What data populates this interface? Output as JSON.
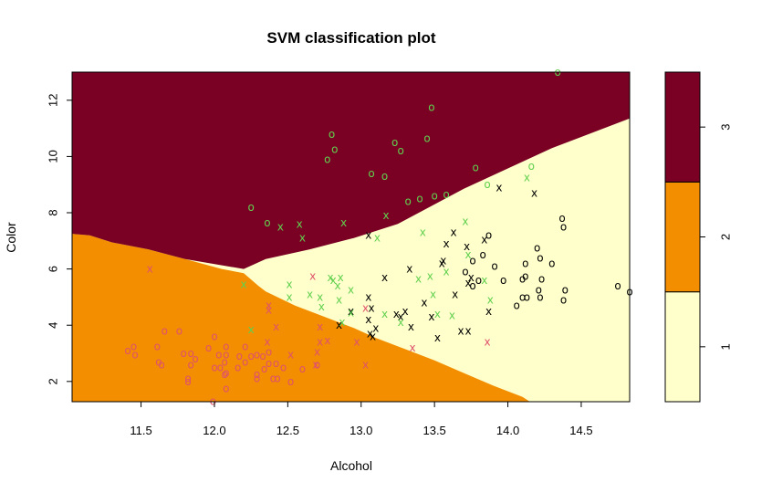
{
  "chart_data": {
    "type": "scatter",
    "title": "SVM classification plot",
    "xlabel": "Alcohol",
    "ylabel": "Color",
    "xlim": [
      11.03,
      14.83
    ],
    "ylim": [
      1.28,
      13.0
    ],
    "xticks": [
      "11.5",
      "12.0",
      "12.5",
      "13.0",
      "13.5",
      "14.0",
      "14.5"
    ],
    "xtick_values": [
      11.5,
      12.0,
      12.5,
      13.0,
      13.5,
      14.0,
      14.5
    ],
    "yticks": [
      "2",
      "4",
      "6",
      "8",
      "10",
      "12"
    ],
    "ytick_values": [
      2,
      4,
      6,
      8,
      10,
      12
    ],
    "legend": {
      "position": "right",
      "type": "color-key",
      "classes": [
        "1",
        "2",
        "3"
      ],
      "colors": [
        "#FFFFCC",
        "#F28E00",
        "#7A0024"
      ]
    },
    "region_colors": {
      "1": "#FFFFCC",
      "2": "#F28E00",
      "3": "#7A0024"
    },
    "point_markers": {
      "support_vector": "x",
      "other": "o"
    },
    "boundary_2": [
      [
        11.03,
        7.25
      ],
      [
        11.15,
        7.2
      ],
      [
        11.3,
        6.95
      ],
      [
        11.55,
        6.7
      ],
      [
        11.8,
        6.35
      ],
      [
        12.05,
        6.0
      ],
      [
        12.2,
        5.85
      ],
      [
        12.3,
        5.4
      ],
      [
        12.35,
        5.2
      ],
      [
        12.55,
        4.7
      ],
      [
        12.75,
        4.3
      ],
      [
        12.95,
        3.9
      ],
      [
        13.1,
        3.55
      ],
      [
        13.3,
        3.15
      ],
      [
        13.5,
        2.75
      ],
      [
        13.7,
        2.3
      ],
      [
        13.9,
        1.85
      ],
      [
        14.1,
        1.45
      ],
      [
        14.15,
        1.28
      ],
      [
        11.03,
        1.28
      ]
    ],
    "boundary_3": [
      [
        11.03,
        13.0
      ],
      [
        14.83,
        13.0
      ],
      [
        14.83,
        11.35
      ],
      [
        14.3,
        10.3
      ],
      [
        13.7,
        8.85
      ],
      [
        13.25,
        7.6
      ],
      [
        12.95,
        7.1
      ],
      [
        12.65,
        6.7
      ],
      [
        12.35,
        6.35
      ],
      [
        12.2,
        6.0
      ],
      [
        11.8,
        6.35
      ],
      [
        11.55,
        6.7
      ],
      [
        11.3,
        6.95
      ],
      [
        11.15,
        7.2
      ],
      [
        11.03,
        7.25
      ]
    ],
    "series": [
      {
        "name": "1",
        "color": "#000000",
        "points": [
          {
            "x": 13.05,
            "y": 7.2,
            "sv": true
          },
          {
            "x": 13.58,
            "y": 6.9,
            "sv": true
          },
          {
            "x": 13.63,
            "y": 7.3,
            "sv": true
          },
          {
            "x": 13.72,
            "y": 6.8,
            "sv": true
          },
          {
            "x": 13.84,
            "y": 7.05,
            "sv": true
          },
          {
            "x": 13.94,
            "y": 8.9,
            "sv": true
          },
          {
            "x": 14.18,
            "y": 8.7,
            "sv": true
          },
          {
            "x": 13.33,
            "y": 6.0,
            "sv": true
          },
          {
            "x": 13.55,
            "y": 6.2,
            "sv": true
          },
          {
            "x": 13.56,
            "y": 6.3,
            "sv": true
          },
          {
            "x": 13.75,
            "y": 5.7,
            "sv": true
          },
          {
            "x": 13.73,
            "y": 5.5,
            "sv": true
          },
          {
            "x": 13.64,
            "y": 5.1,
            "sv": true
          },
          {
            "x": 13.87,
            "y": 4.5,
            "sv": true
          },
          {
            "x": 13.16,
            "y": 5.7,
            "sv": true
          },
          {
            "x": 13.05,
            "y": 5.0,
            "sv": true
          },
          {
            "x": 13.07,
            "y": 4.6,
            "sv": true
          },
          {
            "x": 13.24,
            "y": 4.4,
            "sv": true
          },
          {
            "x": 13.27,
            "y": 4.3,
            "sv": true
          },
          {
            "x": 13.3,
            "y": 4.5,
            "sv": true
          },
          {
            "x": 13.43,
            "y": 4.8,
            "sv": true
          },
          {
            "x": 12.93,
            "y": 4.5,
            "sv": true
          },
          {
            "x": 12.85,
            "y": 4.0,
            "sv": true
          },
          {
            "x": 13.05,
            "y": 4.2,
            "sv": true
          },
          {
            "x": 13.34,
            "y": 3.95,
            "sv": true
          },
          {
            "x": 13.48,
            "y": 4.3,
            "sv": true
          },
          {
            "x": 13.52,
            "y": 3.55,
            "sv": true
          },
          {
            "x": 13.68,
            "y": 3.8,
            "sv": true
          },
          {
            "x": 13.08,
            "y": 3.6,
            "sv": true
          },
          {
            "x": 13.06,
            "y": 3.7,
            "sv": true
          },
          {
            "x": 13.1,
            "y": 3.9,
            "sv": true
          },
          {
            "x": 13.73,
            "y": 3.8,
            "sv": true
          },
          {
            "x": 13.76,
            "y": 6.3,
            "sv": false
          },
          {
            "x": 13.83,
            "y": 6.5,
            "sv": false
          },
          {
            "x": 13.87,
            "y": 7.2,
            "sv": false
          },
          {
            "x": 13.91,
            "y": 6.1,
            "sv": false
          },
          {
            "x": 13.76,
            "y": 5.4,
            "sv": false
          },
          {
            "x": 13.8,
            "y": 5.6,
            "sv": false
          },
          {
            "x": 13.97,
            "y": 5.6,
            "sv": false
          },
          {
            "x": 14.06,
            "y": 4.7,
            "sv": false
          },
          {
            "x": 14.1,
            "y": 5.0,
            "sv": false
          },
          {
            "x": 14.1,
            "y": 5.65,
            "sv": false
          },
          {
            "x": 14.12,
            "y": 5.75,
            "sv": false
          },
          {
            "x": 14.13,
            "y": 5.0,
            "sv": false
          },
          {
            "x": 14.12,
            "y": 6.2,
            "sv": false
          },
          {
            "x": 14.2,
            "y": 6.75,
            "sv": false
          },
          {
            "x": 14.22,
            "y": 6.4,
            "sv": false
          },
          {
            "x": 14.23,
            "y": 5.65,
            "sv": false
          },
          {
            "x": 14.21,
            "y": 5.25,
            "sv": false
          },
          {
            "x": 14.22,
            "y": 5.0,
            "sv": false
          },
          {
            "x": 14.3,
            "y": 6.2,
            "sv": false
          },
          {
            "x": 14.37,
            "y": 7.8,
            "sv": false
          },
          {
            "x": 14.38,
            "y": 7.5,
            "sv": false
          },
          {
            "x": 14.39,
            "y": 5.25,
            "sv": false
          },
          {
            "x": 14.38,
            "y": 4.9,
            "sv": false
          },
          {
            "x": 14.75,
            "y": 5.4,
            "sv": false
          },
          {
            "x": 14.83,
            "y": 5.2,
            "sv": false
          },
          {
            "x": 13.71,
            "y": 5.9,
            "sv": false
          }
        ]
      },
      {
        "name": "2",
        "color": "#DF536B",
        "points": [
          {
            "x": 11.56,
            "y": 6.0,
            "sv": true
          },
          {
            "x": 12.37,
            "y": 4.7,
            "sv": true
          },
          {
            "x": 12.37,
            "y": 4.55,
            "sv": true
          },
          {
            "x": 12.42,
            "y": 3.95,
            "sv": true
          },
          {
            "x": 12.36,
            "y": 3.4,
            "sv": true
          },
          {
            "x": 12.52,
            "y": 2.95,
            "sv": true
          },
          {
            "x": 12.67,
            "y": 5.75,
            "sv": true
          },
          {
            "x": 12.72,
            "y": 3.95,
            "sv": true
          },
          {
            "x": 12.72,
            "y": 3.4,
            "sv": true
          },
          {
            "x": 12.7,
            "y": 3.05,
            "sv": true
          },
          {
            "x": 12.69,
            "y": 2.6,
            "sv": true
          },
          {
            "x": 12.77,
            "y": 3.45,
            "sv": true
          },
          {
            "x": 12.97,
            "y": 3.4,
            "sv": true
          },
          {
            "x": 13.03,
            "y": 2.6,
            "sv": true
          },
          {
            "x": 13.03,
            "y": 4.6,
            "sv": true
          },
          {
            "x": 13.35,
            "y": 3.2,
            "sv": true
          },
          {
            "x": 13.86,
            "y": 3.4,
            "sv": true
          },
          {
            "x": 11.41,
            "y": 3.1,
            "sv": false
          },
          {
            "x": 11.45,
            "y": 3.25,
            "sv": false
          },
          {
            "x": 11.46,
            "y": 2.95,
            "sv": false
          },
          {
            "x": 11.61,
            "y": 3.25,
            "sv": false
          },
          {
            "x": 11.62,
            "y": 2.7,
            "sv": false
          },
          {
            "x": 11.64,
            "y": 2.6,
            "sv": false
          },
          {
            "x": 11.66,
            "y": 3.8,
            "sv": false
          },
          {
            "x": 11.76,
            "y": 3.8,
            "sv": false
          },
          {
            "x": 11.79,
            "y": 3.0,
            "sv": false
          },
          {
            "x": 11.82,
            "y": 2.1,
            "sv": false
          },
          {
            "x": 11.82,
            "y": 2.0,
            "sv": false
          },
          {
            "x": 11.84,
            "y": 2.6,
            "sv": false
          },
          {
            "x": 11.84,
            "y": 3.0,
            "sv": false
          },
          {
            "x": 11.87,
            "y": 2.8,
            "sv": false
          },
          {
            "x": 11.96,
            "y": 3.2,
            "sv": false
          },
          {
            "x": 12.0,
            "y": 3.6,
            "sv": false
          },
          {
            "x": 12.0,
            "y": 2.5,
            "sv": false
          },
          {
            "x": 12.03,
            "y": 2.95,
            "sv": false
          },
          {
            "x": 12.04,
            "y": 2.5,
            "sv": false
          },
          {
            "x": 12.07,
            "y": 2.7,
            "sv": false
          },
          {
            "x": 12.07,
            "y": 2.25,
            "sv": false
          },
          {
            "x": 12.08,
            "y": 2.95,
            "sv": false
          },
          {
            "x": 12.08,
            "y": 3.25,
            "sv": false
          },
          {
            "x": 12.08,
            "y": 2.3,
            "sv": false
          },
          {
            "x": 12.08,
            "y": 1.75,
            "sv": false
          },
          {
            "x": 12.16,
            "y": 2.5,
            "sv": false
          },
          {
            "x": 12.17,
            "y": 2.9,
            "sv": false
          },
          {
            "x": 12.21,
            "y": 3.25,
            "sv": false
          },
          {
            "x": 12.21,
            "y": 2.7,
            "sv": false
          },
          {
            "x": 12.25,
            "y": 2.9,
            "sv": false
          },
          {
            "x": 12.29,
            "y": 2.1,
            "sv": false
          },
          {
            "x": 12.29,
            "y": 2.25,
            "sv": false
          },
          {
            "x": 12.29,
            "y": 2.95,
            "sv": false
          },
          {
            "x": 12.33,
            "y": 2.9,
            "sv": false
          },
          {
            "x": 12.34,
            "y": 2.45,
            "sv": false
          },
          {
            "x": 12.37,
            "y": 2.65,
            "sv": false
          },
          {
            "x": 12.37,
            "y": 3.05,
            "sv": false
          },
          {
            "x": 12.4,
            "y": 2.1,
            "sv": false
          },
          {
            "x": 12.42,
            "y": 2.65,
            "sv": false
          },
          {
            "x": 12.43,
            "y": 2.1,
            "sv": false
          },
          {
            "x": 12.47,
            "y": 2.5,
            "sv": false
          },
          {
            "x": 12.52,
            "y": 2.0,
            "sv": false
          },
          {
            "x": 12.6,
            "y": 2.45,
            "sv": false
          },
          {
            "x": 12.7,
            "y": 2.6,
            "sv": false
          },
          {
            "x": 11.99,
            "y": 1.3,
            "sv": false
          }
        ]
      },
      {
        "name": "3",
        "color": "#61D04F",
        "points": [
          {
            "x": 12.2,
            "y": 5.45,
            "sv": true
          },
          {
            "x": 12.25,
            "y": 3.85,
            "sv": true
          },
          {
            "x": 12.45,
            "y": 7.5,
            "sv": true
          },
          {
            "x": 12.58,
            "y": 7.6,
            "sv": true
          },
          {
            "x": 12.6,
            "y": 7.1,
            "sv": true
          },
          {
            "x": 12.51,
            "y": 5.45,
            "sv": true
          },
          {
            "x": 12.51,
            "y": 5.0,
            "sv": true
          },
          {
            "x": 12.65,
            "y": 5.1,
            "sv": true
          },
          {
            "x": 12.72,
            "y": 5.0,
            "sv": true
          },
          {
            "x": 12.79,
            "y": 5.7,
            "sv": true
          },
          {
            "x": 12.81,
            "y": 5.6,
            "sv": true
          },
          {
            "x": 12.84,
            "y": 5.4,
            "sv": true
          },
          {
            "x": 12.86,
            "y": 5.7,
            "sv": true
          },
          {
            "x": 12.85,
            "y": 4.9,
            "sv": true
          },
          {
            "x": 12.88,
            "y": 7.65,
            "sv": true
          },
          {
            "x": 12.93,
            "y": 5.25,
            "sv": true
          },
          {
            "x": 12.93,
            "y": 4.45,
            "sv": true
          },
          {
            "x": 13.17,
            "y": 7.9,
            "sv": true
          },
          {
            "x": 13.11,
            "y": 7.1,
            "sv": true
          },
          {
            "x": 13.16,
            "y": 4.4,
            "sv": true
          },
          {
            "x": 13.27,
            "y": 4.1,
            "sv": true
          },
          {
            "x": 13.39,
            "y": 5.65,
            "sv": true
          },
          {
            "x": 13.42,
            "y": 7.3,
            "sv": true
          },
          {
            "x": 13.47,
            "y": 5.75,
            "sv": true
          },
          {
            "x": 13.49,
            "y": 5.1,
            "sv": true
          },
          {
            "x": 13.58,
            "y": 5.9,
            "sv": true
          },
          {
            "x": 13.62,
            "y": 4.35,
            "sv": true
          },
          {
            "x": 13.71,
            "y": 7.7,
            "sv": true
          },
          {
            "x": 13.73,
            "y": 6.5,
            "sv": true
          },
          {
            "x": 13.84,
            "y": 5.6,
            "sv": true
          },
          {
            "x": 13.88,
            "y": 4.9,
            "sv": true
          },
          {
            "x": 14.13,
            "y": 9.25,
            "sv": true
          },
          {
            "x": 12.87,
            "y": 4.1,
            "sv": true
          },
          {
            "x": 12.73,
            "y": 4.65,
            "sv": true
          },
          {
            "x": 13.52,
            "y": 4.4,
            "sv": true
          },
          {
            "x": 12.25,
            "y": 8.2,
            "sv": false
          },
          {
            "x": 12.36,
            "y": 7.65,
            "sv": false
          },
          {
            "x": 12.77,
            "y": 9.9,
            "sv": false
          },
          {
            "x": 12.8,
            "y": 10.8,
            "sv": false
          },
          {
            "x": 12.82,
            "y": 10.25,
            "sv": false
          },
          {
            "x": 13.07,
            "y": 9.4,
            "sv": false
          },
          {
            "x": 13.16,
            "y": 9.3,
            "sv": false
          },
          {
            "x": 13.23,
            "y": 10.5,
            "sv": false
          },
          {
            "x": 13.27,
            "y": 10.2,
            "sv": false
          },
          {
            "x": 13.32,
            "y": 8.4,
            "sv": false
          },
          {
            "x": 13.4,
            "y": 8.5,
            "sv": false
          },
          {
            "x": 13.45,
            "y": 10.65,
            "sv": false
          },
          {
            "x": 13.48,
            "y": 11.75,
            "sv": false
          },
          {
            "x": 13.5,
            "y": 8.6,
            "sv": false
          },
          {
            "x": 13.58,
            "y": 8.65,
            "sv": false
          },
          {
            "x": 13.78,
            "y": 9.6,
            "sv": false
          },
          {
            "x": 13.86,
            "y": 9.0,
            "sv": false
          },
          {
            "x": 14.16,
            "y": 9.65,
            "sv": false
          },
          {
            "x": 14.34,
            "y": 13.0,
            "sv": false
          }
        ]
      }
    ]
  }
}
